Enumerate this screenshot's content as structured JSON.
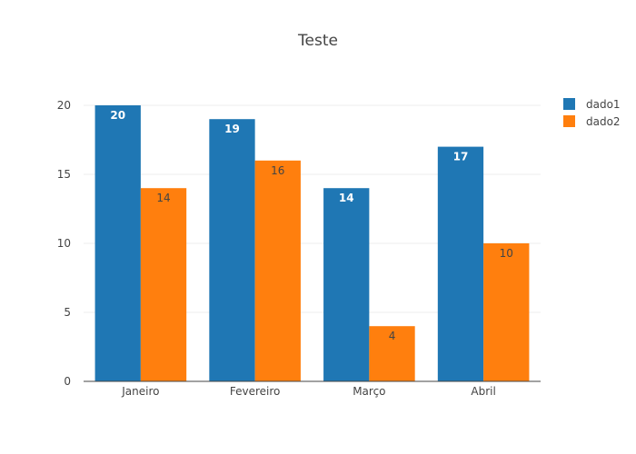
{
  "chart_data": {
    "type": "bar",
    "title": "Teste",
    "xlabel": "",
    "ylabel": "",
    "categories": [
      "Janeiro",
      "Fevereiro",
      "Março",
      "Abril"
    ],
    "series": [
      {
        "name": "dado1",
        "values": [
          20,
          19,
          14,
          17
        ],
        "color": "#1f77b4",
        "label_color": "#ffffff"
      },
      {
        "name": "dado2",
        "values": [
          14,
          16,
          4,
          10
        ],
        "color": "#ff7f0e",
        "label_color": "#444444"
      }
    ],
    "ylim": [
      0,
      20
    ],
    "yticks": [
      0,
      5,
      10,
      15,
      20
    ],
    "grid": true,
    "legend_position": "top-right",
    "bar_mode": "group",
    "data_labels": "inside-end"
  }
}
